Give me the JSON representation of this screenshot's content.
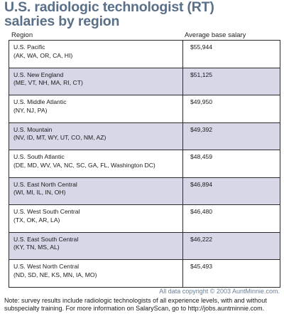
{
  "title": {
    "line1": "U.S. radiologic technologist (RT)",
    "line2": "salaries by region"
  },
  "headers": {
    "region": "Region",
    "salary": "Average base salary"
  },
  "rows": [
    {
      "region": "U.S. Pacific",
      "states": "(AK, WA, OR, CA, HI)",
      "salary": "$55,944"
    },
    {
      "region": "U.S. New England",
      "states": "(ME, VT, NH, MA, RI, CT)",
      "salary": "$51,125"
    },
    {
      "region": "U.S. Middle Atlantic",
      "states": "(NY, NJ, PA)",
      "salary": "$49,950"
    },
    {
      "region": "U.S. Mountain",
      "states": "(NV, ID, MT, WY, UT, CO, NM, AZ)",
      "salary": "$49,392"
    },
    {
      "region": "U.S. South Atlantic",
      "states": "(DE, MD, WV, VA, NC, SC, GA, FL, Washington DC)",
      "salary": "$48,459"
    },
    {
      "region": "U.S. East North Central",
      "states": "(WI, MI, IL, IN, OH)",
      "salary": "$46,894"
    },
    {
      "region": "U.S. West South Central",
      "states": "(TX, OK, AR, LA)",
      "salary": "$46,480"
    },
    {
      "region": "U.S. East South Central",
      "states": "(KY, TN, MS, AL)",
      "salary": "$46,222"
    },
    {
      "region": "U.S. West North Central",
      "states": "(ND, SD, NE, KS, MN, IA, MO)",
      "salary": "$45,493"
    }
  ],
  "footer": {
    "copyright": "All data copyright © 2003 AuntMinnie.com.",
    "note": "Note: survey results include radiologic technologists of all experience levels, with and without subspecialty training. For more information on SalaryScan, go to http://jobs.auntminnie.com."
  },
  "colors": {
    "title": "#5a6f88",
    "row_shade": "#d7d7e8",
    "copyright": "#6a7f98"
  }
}
